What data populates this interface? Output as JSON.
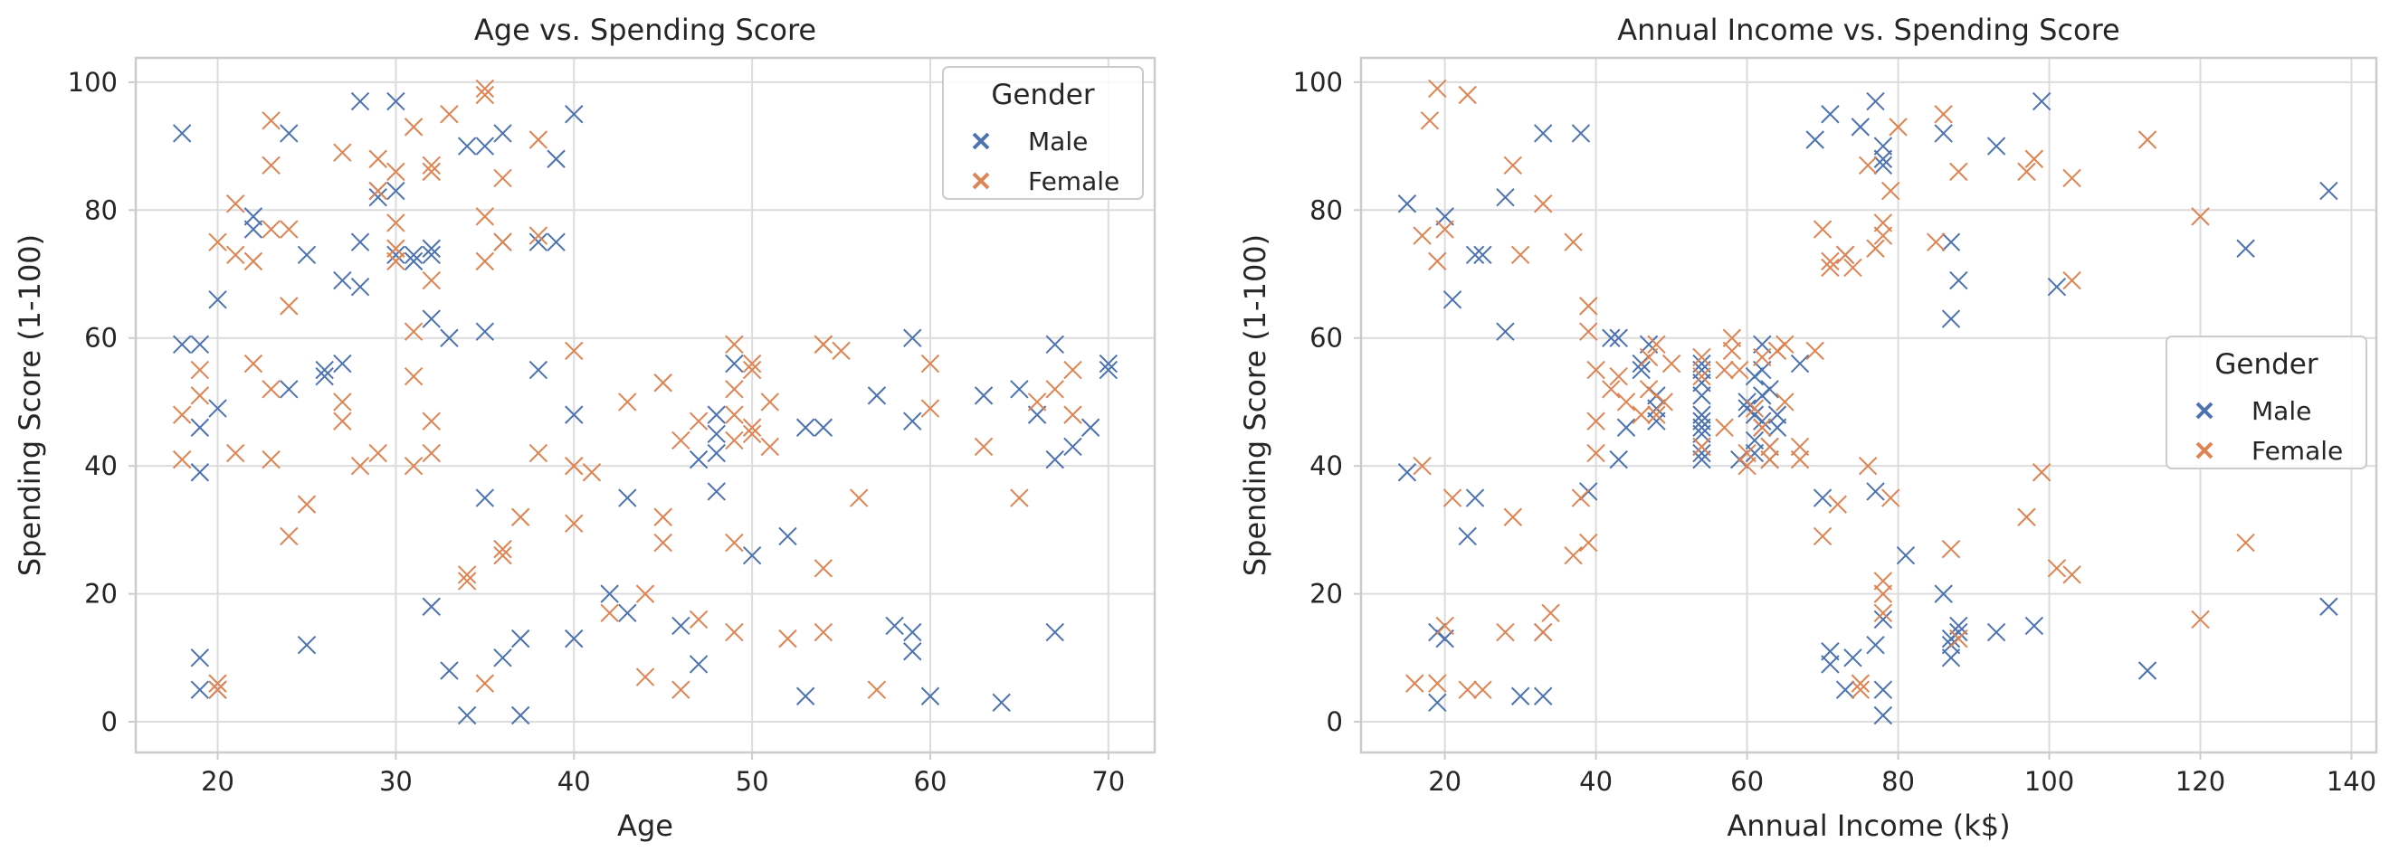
{
  "chart_data": [
    {
      "type": "scatter",
      "title": "Age vs. Spending Score",
      "xlabel": "Age",
      "ylabel": "Spending Score (1-100)",
      "xlim": [
        15.4,
        72.6
      ],
      "ylim": [
        -4.8,
        103.8
      ],
      "xticks": [
        20,
        30,
        40,
        50,
        60,
        70
      ],
      "yticks": [
        0,
        20,
        40,
        60,
        80,
        100
      ],
      "grid": true,
      "marker": "x",
      "legend": {
        "title": "Gender",
        "placement": "top-right"
      },
      "series": [
        {
          "name": "Male",
          "color": "#4c72b0",
          "x": [
            18,
            18,
            19,
            19,
            19,
            20,
            20,
            19,
            19,
            20,
            22,
            22,
            24,
            24,
            25,
            25,
            26,
            26,
            27,
            27,
            28,
            28,
            28,
            29,
            29,
            30,
            30,
            30,
            31,
            31,
            32,
            32,
            32,
            32,
            33,
            33,
            34,
            34,
            35,
            35,
            35,
            36,
            36,
            36,
            37,
            37,
            38,
            38,
            39,
            39,
            40,
            40,
            40,
            42,
            43,
            43,
            46,
            47,
            47,
            48,
            48,
            48,
            48,
            49,
            50,
            52,
            53,
            53,
            54,
            57,
            58,
            59,
            59,
            59,
            59,
            60,
            63,
            64,
            65,
            66,
            67,
            67,
            67,
            68,
            69,
            70,
            70
          ],
          "y": [
            92,
            59,
            59,
            46,
            39,
            49,
            66,
            10,
            5,
            5,
            79,
            77,
            52,
            92,
            73,
            12,
            55,
            54,
            56,
            69,
            97,
            75,
            68,
            82,
            83,
            97,
            83,
            73,
            73,
            72,
            74,
            73,
            63,
            18,
            60,
            8,
            90,
            1,
            90,
            61,
            35,
            92,
            10,
            75,
            13,
            1,
            55,
            75,
            88,
            75,
            95,
            48,
            13,
            20,
            35,
            17,
            15,
            41,
            9,
            36,
            45,
            42,
            48,
            56,
            26,
            29,
            4,
            46,
            46,
            51,
            15,
            60,
            47,
            14,
            11,
            4,
            51,
            3,
            52,
            48,
            59,
            41,
            14,
            43,
            46,
            56,
            55
          ]
        },
        {
          "name": "Female",
          "color": "#dd8452",
          "x": [
            18,
            18,
            19,
            19,
            20,
            20,
            20,
            21,
            21,
            21,
            22,
            22,
            23,
            23,
            23,
            23,
            23,
            24,
            24,
            24,
            25,
            27,
            27,
            27,
            28,
            29,
            29,
            29,
            30,
            30,
            30,
            30,
            31,
            31,
            31,
            31,
            32,
            32,
            32,
            32,
            32,
            33,
            34,
            34,
            35,
            35,
            35,
            35,
            35,
            36,
            36,
            36,
            36,
            37,
            38,
            38,
            38,
            40,
            40,
            40,
            40,
            41,
            42,
            43,
            44,
            44,
            45,
            45,
            45,
            46,
            46,
            47,
            47,
            49,
            49,
            49,
            49,
            49,
            49,
            50,
            50,
            50,
            50,
            51,
            51,
            52,
            54,
            54,
            54,
            54,
            55,
            56,
            57,
            60,
            60,
            63,
            65,
            66,
            67,
            68,
            68
          ],
          "y": [
            48,
            41,
            55,
            51,
            75,
            5,
            6,
            81,
            73,
            42,
            56,
            72,
            94,
            87,
            77,
            52,
            41,
            29,
            77,
            65,
            34,
            89,
            47,
            50,
            40,
            88,
            83,
            42,
            86,
            78,
            72,
            74,
            93,
            54,
            40,
            61,
            87,
            86,
            42,
            47,
            69,
            95,
            23,
            22,
            99,
            98,
            79,
            72,
            6,
            75,
            27,
            85,
            26,
            32,
            91,
            76,
            42,
            58,
            40,
            31,
            40,
            39,
            17,
            50,
            20,
            7,
            53,
            32,
            28,
            44,
            5,
            16,
            47,
            59,
            52,
            48,
            44,
            28,
            14,
            46,
            55,
            56,
            45,
            43,
            50,
            13,
            59,
            24,
            14,
            59,
            58,
            35,
            5,
            56,
            49,
            43,
            35,
            50,
            52,
            55,
            48
          ]
        }
      ]
    },
    {
      "type": "scatter",
      "title": "Annual Income vs. Spending Score",
      "xlabel": "Annual Income (k$)",
      "ylabel": "Spending Score (1-100)",
      "xlim": [
        8.9,
        143.3
      ],
      "ylim": [
        -4.8,
        103.8
      ],
      "xticks": [
        20,
        40,
        60,
        80,
        100,
        120,
        140
      ],
      "yticks": [
        0,
        20,
        40,
        60,
        80,
        100
      ],
      "grid": true,
      "marker": "x",
      "legend": {
        "title": "Gender",
        "placement": "center-right"
      },
      "series": [
        {
          "name": "Male",
          "color": "#4c72b0",
          "x": [
            15,
            15,
            19,
            19,
            20,
            20,
            21,
            23,
            24,
            24,
            25,
            28,
            28,
            30,
            33,
            33,
            33,
            38,
            39,
            42,
            43,
            43,
            44,
            46,
            46,
            47,
            48,
            48,
            48,
            54,
            54,
            54,
            54,
            54,
            54,
            54,
            54,
            54,
            54,
            54,
            59,
            60,
            60,
            61,
            61,
            61,
            61,
            62,
            62,
            62,
            62,
            62,
            63,
            63,
            63,
            64,
            64,
            67,
            69,
            70,
            71,
            71,
            71,
            73,
            73,
            74,
            75,
            77,
            77,
            77,
            78,
            78,
            78,
            78,
            78,
            78,
            81,
            86,
            86,
            87,
            87,
            87,
            87,
            87,
            88,
            88,
            88,
            93,
            93,
            98,
            99,
            101,
            113,
            126,
            137,
            137
          ],
          "y": [
            81,
            39,
            14,
            3,
            79,
            13,
            66,
            29,
            73,
            35,
            73,
            82,
            61,
            4,
            92,
            4,
            14,
            92,
            36,
            60,
            60,
            41,
            46,
            56,
            55,
            59,
            51,
            49,
            47,
            55,
            53,
            51,
            48,
            47,
            46,
            45,
            43,
            42,
            41,
            56,
            41,
            49,
            50,
            54,
            48,
            42,
            44,
            55,
            59,
            51,
            47,
            46,
            52,
            41,
            43,
            46,
            48,
            56,
            91,
            35,
            95,
            11,
            9,
            73,
            5,
            10,
            93,
            97,
            12,
            36,
            88,
            90,
            87,
            16,
            1,
            5,
            26,
            20,
            92,
            63,
            75,
            10,
            13,
            12,
            69,
            15,
            14,
            90,
            14,
            15,
            97,
            68,
            8,
            74,
            83,
            18
          ]
        },
        {
          "name": "Female",
          "color": "#dd8452",
          "x": [
            16,
            17,
            17,
            18,
            19,
            19,
            19,
            20,
            20,
            21,
            23,
            23,
            25,
            28,
            29,
            29,
            30,
            33,
            33,
            34,
            37,
            37,
            38,
            39,
            39,
            39,
            40,
            40,
            40,
            42,
            43,
            44,
            46,
            47,
            47,
            48,
            48,
            49,
            50,
            54,
            54,
            54,
            57,
            57,
            58,
            58,
            59,
            60,
            60,
            61,
            62,
            62,
            63,
            63,
            64,
            65,
            65,
            67,
            67,
            69,
            70,
            70,
            71,
            71,
            72,
            73,
            74,
            75,
            75,
            76,
            76,
            77,
            78,
            78,
            78,
            78,
            78,
            79,
            79,
            80,
            85,
            86,
            87,
            88,
            88,
            97,
            97,
            98,
            99,
            101,
            103,
            103,
            103,
            113,
            120,
            120,
            126
          ],
          "y": [
            6,
            76,
            40,
            94,
            6,
            72,
            99,
            77,
            15,
            35,
            98,
            5,
            5,
            14,
            32,
            87,
            73,
            81,
            14,
            17,
            75,
            26,
            35,
            28,
            61,
            65,
            55,
            42,
            47,
            52,
            54,
            50,
            48,
            57,
            52,
            59,
            48,
            50,
            56,
            57,
            54,
            43,
            55,
            46,
            58,
            60,
            55,
            42,
            40,
            49,
            57,
            46,
            43,
            41,
            58,
            59,
            50,
            43,
            41,
            58,
            29,
            77,
            72,
            71,
            34,
            73,
            71,
            6,
            5,
            40,
            87,
            74,
            76,
            78,
            22,
            20,
            17,
            35,
            83,
            93,
            75,
            95,
            27,
            86,
            13,
            32,
            86,
            88,
            39,
            24,
            85,
            69,
            23,
            91,
            79,
            16,
            28
          ]
        }
      ]
    }
  ]
}
